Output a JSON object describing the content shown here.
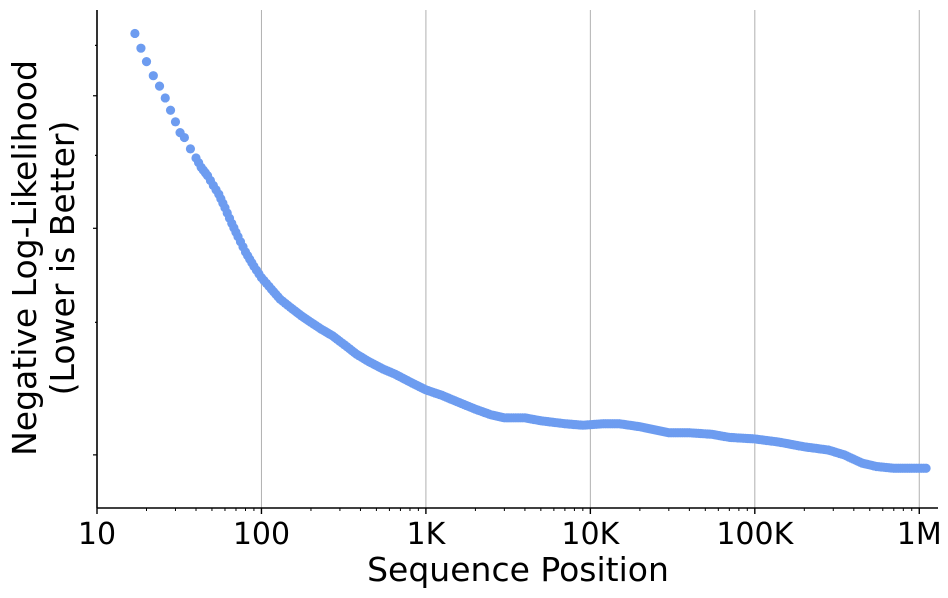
{
  "chart_data": {
    "type": "scatter",
    "xlabel": "Sequence Position",
    "ylabel_lines": [
      "Negative Log-Likelihood",
      "(Lower is Better)"
    ],
    "x_scale": "log",
    "xlim": [
      10,
      1300000
    ],
    "x_ticks": [
      {
        "value": 10,
        "label": "10"
      },
      {
        "value": 100,
        "label": "100"
      },
      {
        "value": 1000,
        "label": "1K"
      },
      {
        "value": 10000,
        "label": "10K"
      },
      {
        "value": 100000,
        "label": "100K"
      },
      {
        "value": 1000000,
        "label": "1M"
      }
    ],
    "y_scale": "log",
    "ylim": [
      0.85,
      3.9
    ],
    "y_ticks": [
      1.0,
      2.0,
      3.0
    ],
    "grid": "vertical lines at major x ticks",
    "marker_color": "#6d9cf0",
    "points": [
      [
        17,
        3.63
      ],
      [
        18.5,
        3.47
      ],
      [
        20,
        3.33
      ],
      [
        22,
        3.19
      ],
      [
        24,
        3.09
      ],
      [
        26,
        2.98
      ],
      [
        28,
        2.87
      ],
      [
        30,
        2.77
      ],
      [
        32,
        2.68
      ],
      [
        34,
        2.64
      ],
      [
        37,
        2.55
      ],
      [
        40,
        2.48
      ],
      [
        43,
        2.41
      ],
      [
        47,
        2.35
      ],
      [
        51,
        2.28
      ],
      [
        55,
        2.22
      ],
      [
        60,
        2.13
      ],
      [
        66,
        2.03
      ],
      [
        72,
        1.95
      ],
      [
        80,
        1.86
      ],
      [
        90,
        1.78
      ],
      [
        100,
        1.72
      ],
      [
        115,
        1.66
      ],
      [
        130,
        1.61
      ],
      [
        150,
        1.57
      ],
      [
        175,
        1.53
      ],
      [
        200,
        1.5
      ],
      [
        230,
        1.47
      ],
      [
        270,
        1.44
      ],
      [
        320,
        1.4
      ],
      [
        380,
        1.36
      ],
      [
        450,
        1.33
      ],
      [
        550,
        1.3
      ],
      [
        650,
        1.28
      ],
      [
        800,
        1.25
      ],
      [
        1000,
        1.22
      ],
      [
        1250,
        1.2
      ],
      [
        1500,
        1.18
      ],
      [
        2000,
        1.15
      ],
      [
        2500,
        1.13
      ],
      [
        3000,
        1.12
      ],
      [
        4000,
        1.12
      ],
      [
        5000,
        1.11
      ],
      [
        7000,
        1.1
      ],
      [
        9000,
        1.095
      ],
      [
        12000,
        1.1
      ],
      [
        15000,
        1.1
      ],
      [
        20000,
        1.09
      ],
      [
        30000,
        1.07
      ],
      [
        40000,
        1.07
      ],
      [
        55000,
        1.065
      ],
      [
        70000,
        1.055
      ],
      [
        100000,
        1.05
      ],
      [
        140000,
        1.04
      ],
      [
        200000,
        1.025
      ],
      [
        280000,
        1.015
      ],
      [
        350000,
        1.0
      ],
      [
        450000,
        0.975
      ],
      [
        550000,
        0.965
      ],
      [
        700000,
        0.96
      ],
      [
        900000,
        0.96
      ],
      [
        1100000,
        0.96
      ]
    ]
  }
}
